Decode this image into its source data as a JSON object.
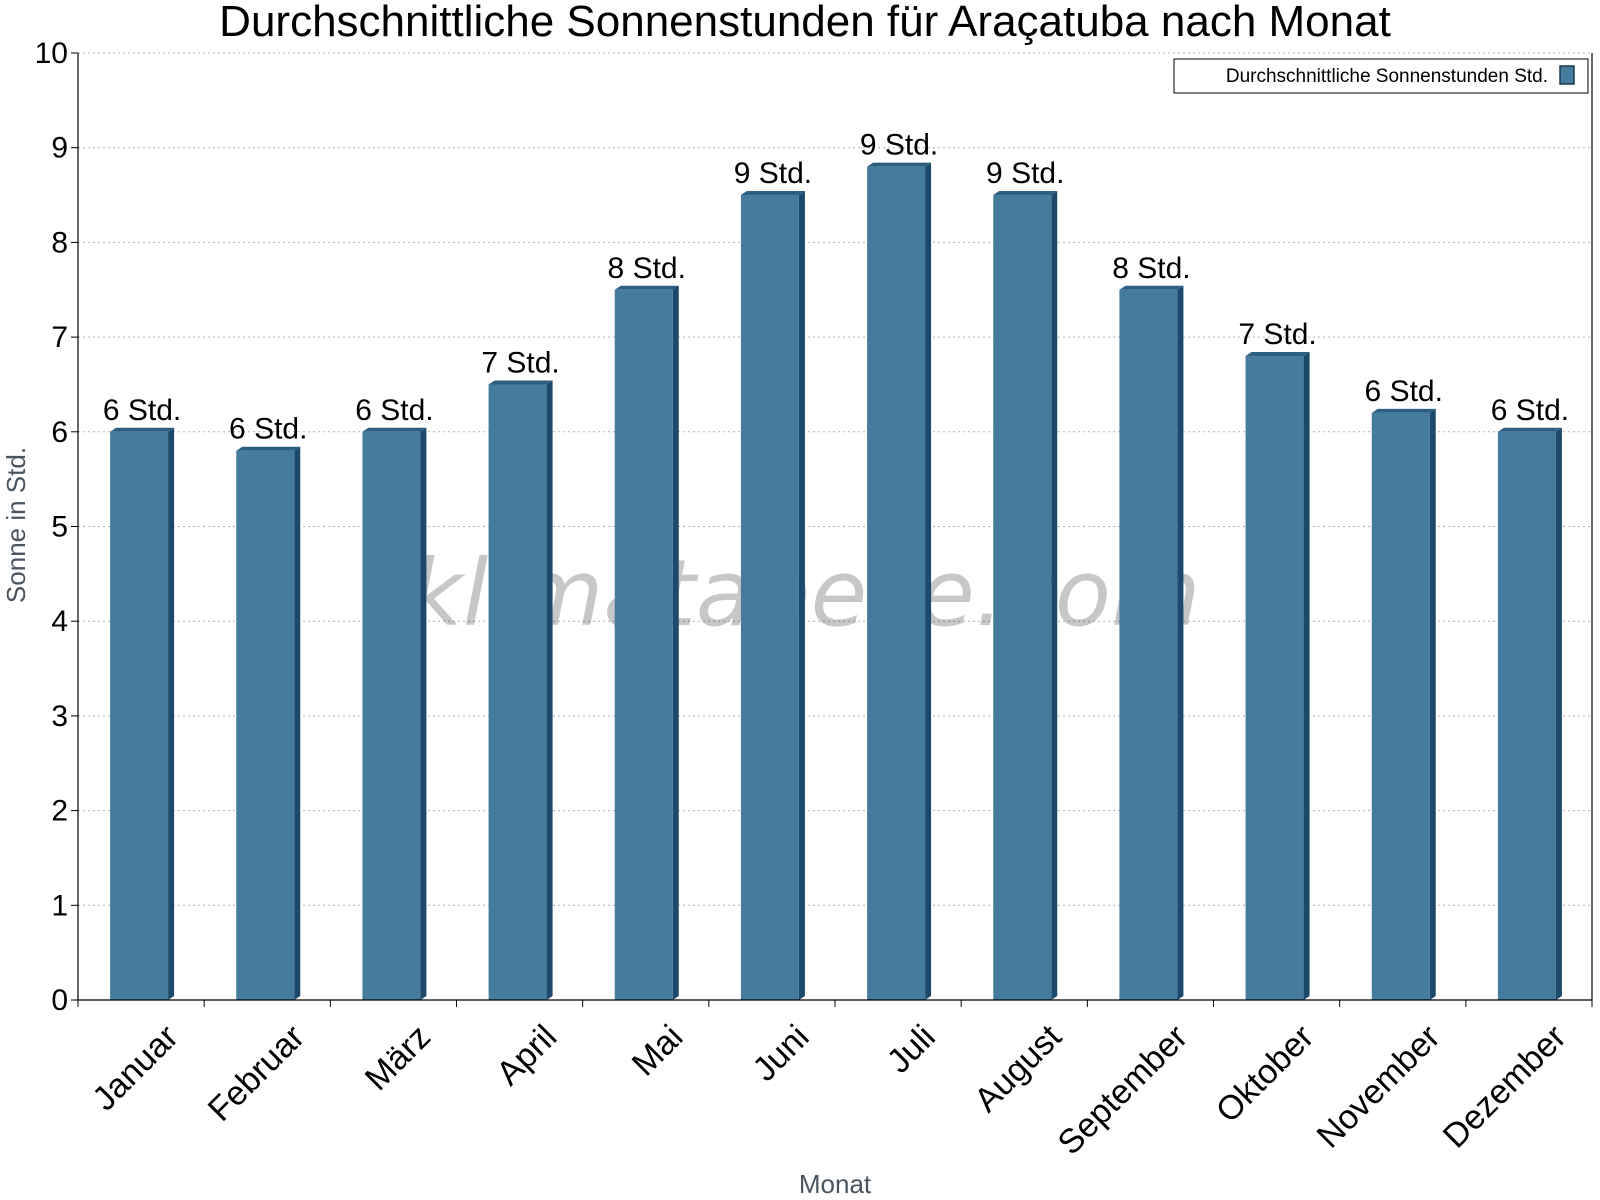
{
  "chart_data": {
    "type": "bar",
    "title": "Durchschnittliche Sonnenstunden für Araçatuba nach Monat",
    "xlabel": "Monat",
    "ylabel": "Sonne in Std.",
    "ylim": [
      0,
      10
    ],
    "yticks": [
      "0",
      "1",
      "2",
      "3",
      "4",
      "5",
      "6",
      "7",
      "8",
      "9",
      "10"
    ],
    "categories": [
      "Januar",
      "Februar",
      "März",
      "April",
      "Mai",
      "Juni",
      "Juli",
      "August",
      "September",
      "Oktober",
      "November",
      "Dezember"
    ],
    "series": [
      {
        "name": "Durchschnittliche Sonnenstunden Std.",
        "values": [
          6.0,
          5.8,
          6.0,
          6.5,
          7.5,
          8.5,
          8.8,
          8.5,
          7.5,
          6.8,
          6.2,
          6.0
        ],
        "labels": [
          "6 Std.",
          "6 Std.",
          "6 Std.",
          "7 Std.",
          "8 Std.",
          "9 Std.",
          "9 Std.",
          "9 Std.",
          "8 Std.",
          "7 Std.",
          "6 Std.",
          "6 Std."
        ]
      }
    ],
    "grid": true,
    "legend_position": "top-right",
    "colors": {
      "bar": "#457b9d",
      "bar_side": "#1d4a6b",
      "bar_top": "#2d5f82",
      "grid": "#b0b0b0"
    }
  },
  "watermark": "klimatabelle.com"
}
